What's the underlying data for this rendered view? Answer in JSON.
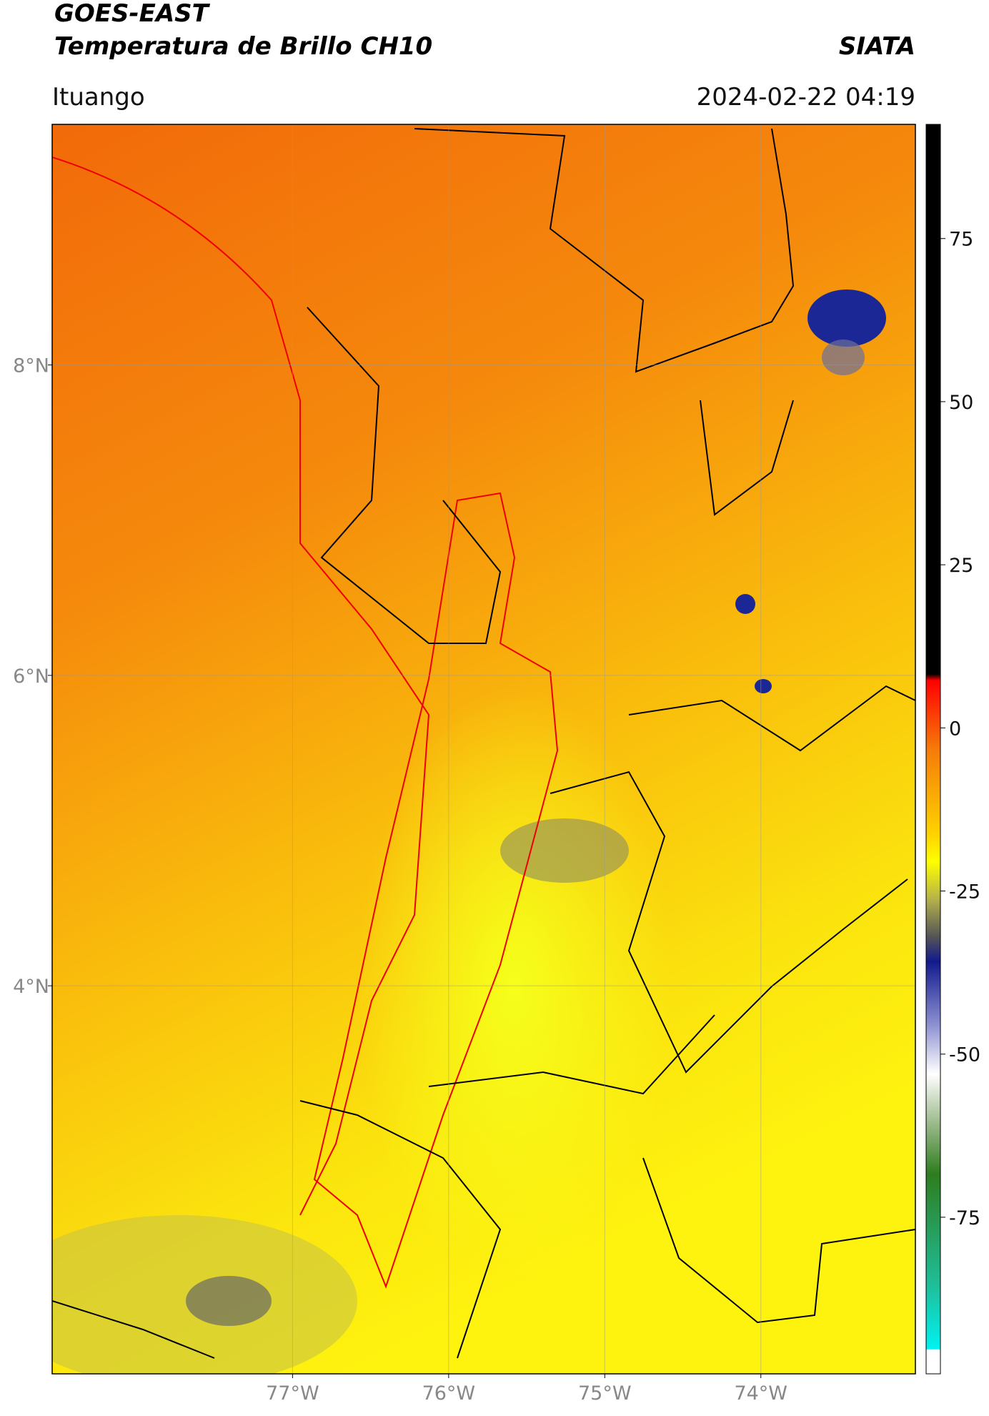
{
  "header": {
    "title": "GOES-EAST",
    "subtitle": "Temperatura de Brillo CH10",
    "agency": "SIATA",
    "region": "Ituango",
    "timestamp": "2024-02-22 04:19"
  },
  "map": {
    "lonlim": [
      -78.54,
      -73.01
    ],
    "latlim": [
      1.5,
      9.55
    ],
    "lonticks": [
      {
        "value": -77,
        "label": "77°W"
      },
      {
        "value": -76,
        "label": "76°W"
      },
      {
        "value": -75,
        "label": "75°W"
      },
      {
        "value": -74,
        "label": "74°W"
      }
    ],
    "latticks": [
      {
        "value": 8,
        "label": "8°N"
      },
      {
        "value": 6,
        "label": "6°N"
      },
      {
        "value": 4,
        "label": "4°N"
      }
    ],
    "grid": true
  },
  "colorbar": {
    "lim": [
      -99,
      92.5
    ],
    "ticks": [
      75,
      50,
      25,
      0,
      -25,
      -50,
      -75
    ]
  }
}
